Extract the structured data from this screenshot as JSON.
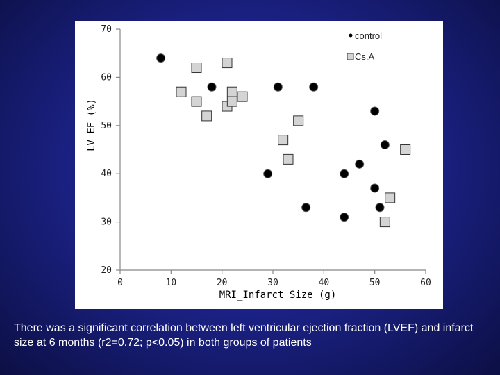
{
  "chart_data": {
    "type": "scatter",
    "xlabel": "MRI_Infarct Size (g)",
    "ylabel": "LV EF (%)",
    "xlim": [
      0,
      60
    ],
    "ylim": [
      20,
      70
    ],
    "xticks": [
      0,
      10,
      20,
      30,
      40,
      50,
      60
    ],
    "yticks": [
      20,
      30,
      40,
      50,
      60,
      70
    ],
    "grid": false,
    "legend_position": "top-right",
    "series": [
      {
        "name": "control",
        "marker": "circle",
        "color": "#000000",
        "points": [
          {
            "x": 8,
            "y": 64
          },
          {
            "x": 18,
            "y": 58
          },
          {
            "x": 31,
            "y": 58
          },
          {
            "x": 38,
            "y": 58
          },
          {
            "x": 50,
            "y": 53
          },
          {
            "x": 52,
            "y": 46
          },
          {
            "x": 29,
            "y": 40
          },
          {
            "x": 44,
            "y": 40
          },
          {
            "x": 47,
            "y": 42
          },
          {
            "x": 50,
            "y": 37
          },
          {
            "x": 36.5,
            "y": 33
          },
          {
            "x": 51,
            "y": 33
          },
          {
            "x": 44,
            "y": 31
          }
        ]
      },
      {
        "name": "Cs.A",
        "marker": "square",
        "color": "#d4d4d4",
        "points": [
          {
            "x": 15,
            "y": 62
          },
          {
            "x": 21,
            "y": 63
          },
          {
            "x": 12,
            "y": 57
          },
          {
            "x": 15,
            "y": 55
          },
          {
            "x": 17,
            "y": 52
          },
          {
            "x": 21,
            "y": 54
          },
          {
            "x": 22,
            "y": 57
          },
          {
            "x": 22,
            "y": 55
          },
          {
            "x": 24,
            "y": 56
          },
          {
            "x": 35,
            "y": 51
          },
          {
            "x": 32,
            "y": 47
          },
          {
            "x": 33,
            "y": 43
          },
          {
            "x": 56,
            "y": 45
          },
          {
            "x": 53,
            "y": 35
          },
          {
            "x": 52,
            "y": 30
          }
        ]
      }
    ]
  },
  "caption": "There was a significant correlation between left ventricular ejection fraction (LVEF) and infarct size at 6 months (r2=0.72; p<0.05) in both groups of patients"
}
